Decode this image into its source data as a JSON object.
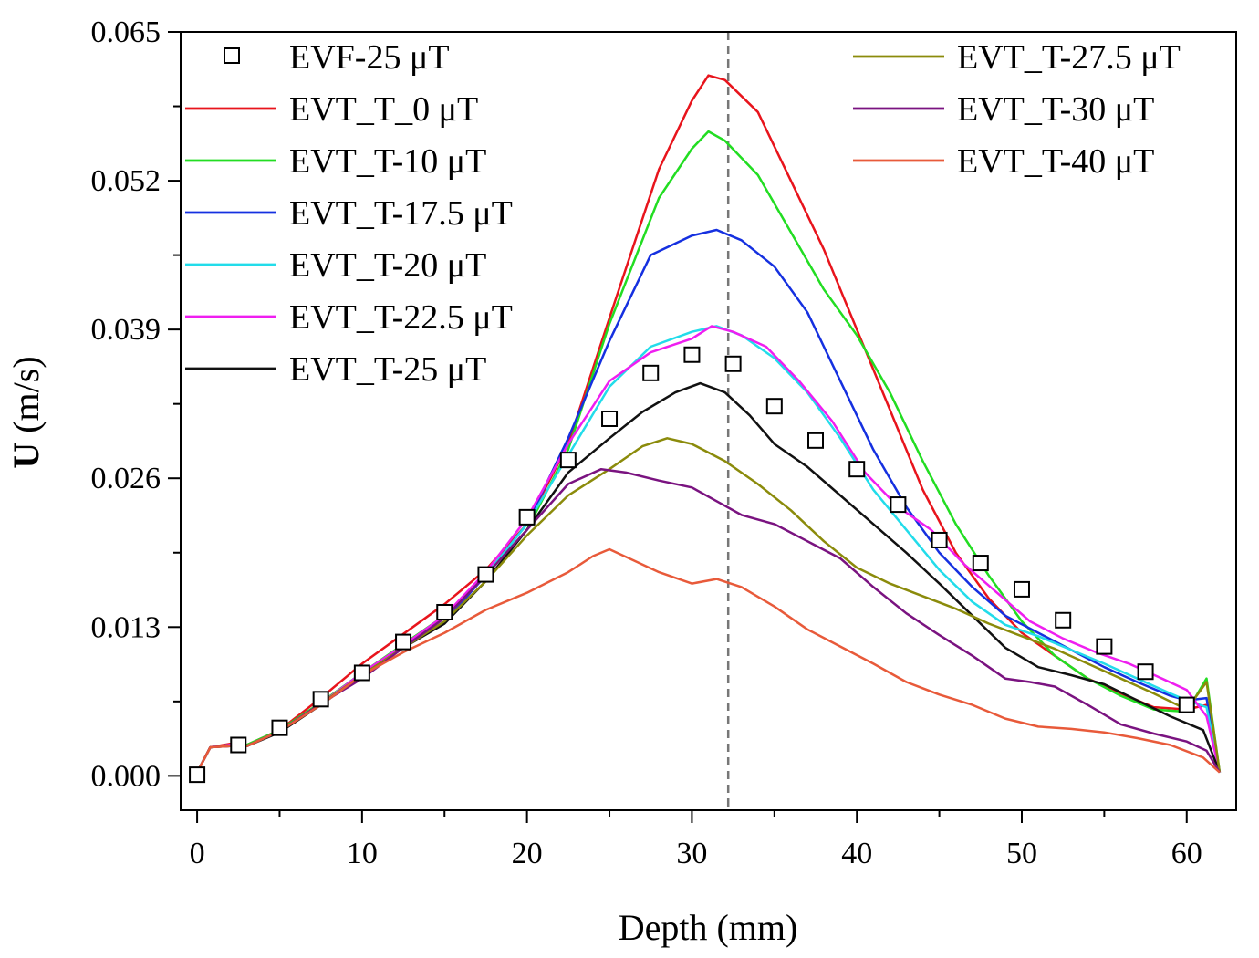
{
  "chart_data": {
    "type": "line",
    "title": "",
    "xlabel": "Depth (mm)",
    "ylabel_bold": "U",
    "ylabel_rest": " (m/s)",
    "xlim": [
      -1,
      63
    ],
    "ylim": [
      -0.003,
      0.065
    ],
    "xticks": [
      0,
      10,
      20,
      30,
      40,
      50,
      60
    ],
    "xtick_labels": [
      "0",
      "10",
      "20",
      "30",
      "40",
      "50",
      "60"
    ],
    "yticks": [
      0.0,
      0.013,
      0.026,
      0.039,
      0.052,
      0.065
    ],
    "ytick_labels": [
      "0.000",
      "0.013",
      "0.026",
      "0.039",
      "0.052",
      "0.065"
    ],
    "reference_line_x": 32.2,
    "legend_placement": "top, two columns",
    "markers": {
      "name": "EVF-25 μT",
      "x": [
        0,
        2.5,
        5,
        7.5,
        10,
        12.5,
        15,
        17.5,
        20,
        22.5,
        25,
        27.5,
        30,
        32.5,
        35,
        37.5,
        40,
        42.5,
        45,
        47.5,
        50,
        52.5,
        55,
        57.5,
        60
      ],
      "y": [
        0.0001,
        0.0027,
        0.0042,
        0.0067,
        0.009,
        0.0117,
        0.0143,
        0.0176,
        0.0226,
        0.0276,
        0.0312,
        0.0352,
        0.0368,
        0.036,
        0.0323,
        0.0293,
        0.0268,
        0.0237,
        0.0206,
        0.0186,
        0.0163,
        0.0136,
        0.0113,
        0.0091,
        0.0062
      ]
    },
    "series": [
      {
        "name": "EVT_T_0 μT",
        "color": "#e8141c",
        "x": [
          0,
          0.8,
          2,
          3,
          5,
          7.5,
          10,
          12.5,
          15,
          17.5,
          20,
          22.5,
          25,
          28,
          30,
          31,
          32,
          34,
          36,
          38,
          40,
          42,
          44,
          46,
          48,
          50,
          52,
          54,
          56,
          58,
          60,
          61.2,
          62
        ],
        "y": [
          0.0003,
          0.0025,
          0.0028,
          0.0027,
          0.004,
          0.0068,
          0.0098,
          0.0124,
          0.015,
          0.018,
          0.022,
          0.029,
          0.04,
          0.053,
          0.059,
          0.0612,
          0.0608,
          0.058,
          0.052,
          0.046,
          0.039,
          0.032,
          0.025,
          0.0195,
          0.0155,
          0.0125,
          0.0105,
          0.0085,
          0.0072,
          0.006,
          0.0058,
          0.0062,
          0.0003
        ]
      },
      {
        "name": "EVT_T-10 μT",
        "color": "#22dd22",
        "x": [
          0,
          0.8,
          2,
          3,
          5,
          7.5,
          10,
          12.5,
          15,
          17.5,
          20,
          22.5,
          25,
          28,
          30,
          31,
          32,
          34,
          36,
          38,
          40,
          42,
          44,
          46,
          48,
          50,
          52,
          54,
          56,
          58,
          60,
          61.2,
          62
        ],
        "y": [
          0.0003,
          0.0025,
          0.0027,
          0.0027,
          0.004,
          0.0064,
          0.009,
          0.0115,
          0.014,
          0.0175,
          0.0215,
          0.0285,
          0.0395,
          0.0505,
          0.0548,
          0.0563,
          0.0555,
          0.0525,
          0.0475,
          0.0425,
          0.0385,
          0.0335,
          0.0275,
          0.022,
          0.0175,
          0.0135,
          0.0105,
          0.0085,
          0.007,
          0.0058,
          0.0056,
          0.0085,
          0.0003
        ]
      },
      {
        "name": "EVT_T-17.5 μT",
        "color": "#1530e0",
        "x": [
          0,
          0.8,
          2,
          3,
          5,
          7.5,
          10,
          12.5,
          15,
          17.5,
          20,
          22.5,
          25,
          27.5,
          30,
          31.5,
          33,
          35,
          37,
          39,
          41,
          43,
          45,
          47,
          49,
          51,
          53,
          55,
          57,
          59,
          60,
          61.2,
          62
        ],
        "y": [
          0.0003,
          0.0025,
          0.0027,
          0.0026,
          0.0039,
          0.0062,
          0.0088,
          0.0112,
          0.0135,
          0.0175,
          0.022,
          0.0295,
          0.038,
          0.0455,
          0.0472,
          0.0477,
          0.0468,
          0.0445,
          0.0405,
          0.0345,
          0.0285,
          0.0235,
          0.0195,
          0.0165,
          0.014,
          0.0125,
          0.011,
          0.0095,
          0.0082,
          0.007,
          0.0066,
          0.0068,
          0.0003
        ]
      },
      {
        "name": "EVT_T-20 μT",
        "color": "#22dcea",
        "x": [
          0,
          0.8,
          2,
          3,
          5,
          7.5,
          10,
          12.5,
          15,
          17.5,
          20,
          22.5,
          25,
          27.5,
          30,
          31.5,
          33,
          35,
          37,
          39,
          41,
          43,
          45,
          47,
          49,
          51,
          53,
          55,
          57,
          59,
          60,
          61.2,
          62
        ],
        "y": [
          0.0003,
          0.0025,
          0.0027,
          0.0026,
          0.0039,
          0.0063,
          0.009,
          0.0113,
          0.0138,
          0.0175,
          0.022,
          0.028,
          0.034,
          0.0375,
          0.0388,
          0.0393,
          0.0385,
          0.0365,
          0.0335,
          0.0295,
          0.025,
          0.0215,
          0.018,
          0.0152,
          0.0132,
          0.0122,
          0.011,
          0.0098,
          0.0085,
          0.0072,
          0.0066,
          0.006,
          0.0003
        ]
      },
      {
        "name": "EVT_T-22.5 μT",
        "color": "#ef1ef0",
        "x": [
          0,
          0.8,
          2,
          3,
          5,
          7.5,
          10,
          12.5,
          15,
          17.5,
          20,
          22.5,
          25,
          27.5,
          30,
          31.2,
          32.5,
          34.5,
          36.5,
          38.5,
          40.5,
          42.5,
          44.5,
          46.5,
          48.5,
          50.5,
          52.5,
          54.5,
          56.5,
          58.5,
          60,
          61.2,
          62
        ],
        "y": [
          0.0003,
          0.0025,
          0.0027,
          0.0026,
          0.0039,
          0.0063,
          0.009,
          0.0114,
          0.014,
          0.0178,
          0.0225,
          0.029,
          0.0345,
          0.037,
          0.0382,
          0.0393,
          0.0388,
          0.0375,
          0.0345,
          0.031,
          0.0265,
          0.0235,
          0.0215,
          0.0185,
          0.016,
          0.0135,
          0.012,
          0.0108,
          0.0098,
          0.0085,
          0.0075,
          0.0052,
          0.0003
        ]
      },
      {
        "name": "EVT_T-25 μT",
        "color": "#111111",
        "x": [
          0,
          0.8,
          2,
          3,
          5,
          7.5,
          10,
          12.5,
          15,
          17.5,
          20,
          22.5,
          25,
          27,
          29,
          30.5,
          32,
          33.5,
          35,
          37,
          39,
          41,
          43,
          45,
          47,
          49,
          51,
          53,
          55,
          57,
          59,
          61,
          62
        ],
        "y": [
          0.0003,
          0.0025,
          0.0026,
          0.0026,
          0.0038,
          0.0062,
          0.0088,
          0.0112,
          0.0133,
          0.017,
          0.0215,
          0.0265,
          0.0295,
          0.0318,
          0.0335,
          0.0343,
          0.0335,
          0.0315,
          0.029,
          0.027,
          0.0245,
          0.022,
          0.0195,
          0.0168,
          0.014,
          0.0112,
          0.0095,
          0.0088,
          0.008,
          0.0066,
          0.0052,
          0.004,
          0.0003
        ]
      },
      {
        "name": "EVT_T-27.5 μT",
        "color": "#8b8b0b",
        "x": [
          0,
          0.8,
          2,
          3,
          5,
          7.5,
          10,
          12.5,
          15,
          17.5,
          20,
          22.5,
          25,
          27,
          28.5,
          30,
          32,
          34,
          36,
          38,
          40,
          42,
          44,
          46,
          48,
          50,
          52,
          54,
          56,
          58,
          60,
          61.2,
          62
        ],
        "y": [
          0.0003,
          0.0025,
          0.0026,
          0.0026,
          0.0039,
          0.0063,
          0.0088,
          0.0112,
          0.0135,
          0.017,
          0.021,
          0.0245,
          0.0268,
          0.0288,
          0.0295,
          0.029,
          0.0275,
          0.0255,
          0.0232,
          0.0205,
          0.0182,
          0.0168,
          0.0157,
          0.0146,
          0.0133,
          0.0122,
          0.0111,
          0.0098,
          0.0085,
          0.0072,
          0.0058,
          0.0082,
          0.0003
        ]
      },
      {
        "name": "EVT_T-30 μT",
        "color": "#7a1380",
        "x": [
          0,
          0.8,
          2,
          3,
          5,
          7.5,
          10,
          12.5,
          15,
          17.5,
          20,
          22.5,
          24.5,
          26,
          28,
          30,
          31.5,
          33,
          35,
          37,
          39,
          41,
          43,
          45,
          47,
          49,
          50.5,
          52,
          54,
          56,
          58,
          60,
          61.2,
          62
        ],
        "y": [
          0.0003,
          0.0025,
          0.0026,
          0.0026,
          0.0039,
          0.0063,
          0.0085,
          0.0112,
          0.0138,
          0.0175,
          0.0215,
          0.0255,
          0.0268,
          0.0265,
          0.0258,
          0.0252,
          0.024,
          0.0228,
          0.022,
          0.0205,
          0.019,
          0.0165,
          0.0142,
          0.0123,
          0.0105,
          0.0085,
          0.0082,
          0.0078,
          0.0062,
          0.0045,
          0.0037,
          0.003,
          0.0022,
          0.0003
        ]
      },
      {
        "name": "EVT_T-40 μT",
        "color": "#e85a3a",
        "x": [
          0,
          0.8,
          2,
          3,
          5,
          7.5,
          10,
          12.5,
          15,
          17.5,
          20,
          22.5,
          24,
          25,
          26.5,
          28,
          30,
          31.5,
          33,
          35,
          37,
          39,
          41,
          43,
          45,
          47,
          49,
          51,
          53,
          55,
          57,
          59,
          61,
          62
        ],
        "y": [
          0.0003,
          0.0025,
          0.0026,
          0.0026,
          0.0039,
          0.0062,
          0.0088,
          0.0108,
          0.0125,
          0.0145,
          0.016,
          0.0178,
          0.0192,
          0.0198,
          0.0188,
          0.0178,
          0.0168,
          0.0172,
          0.0165,
          0.0148,
          0.0128,
          0.0113,
          0.0098,
          0.0082,
          0.0071,
          0.0062,
          0.005,
          0.0043,
          0.0041,
          0.0038,
          0.0033,
          0.0027,
          0.0016,
          0.0003
        ]
      }
    ]
  }
}
